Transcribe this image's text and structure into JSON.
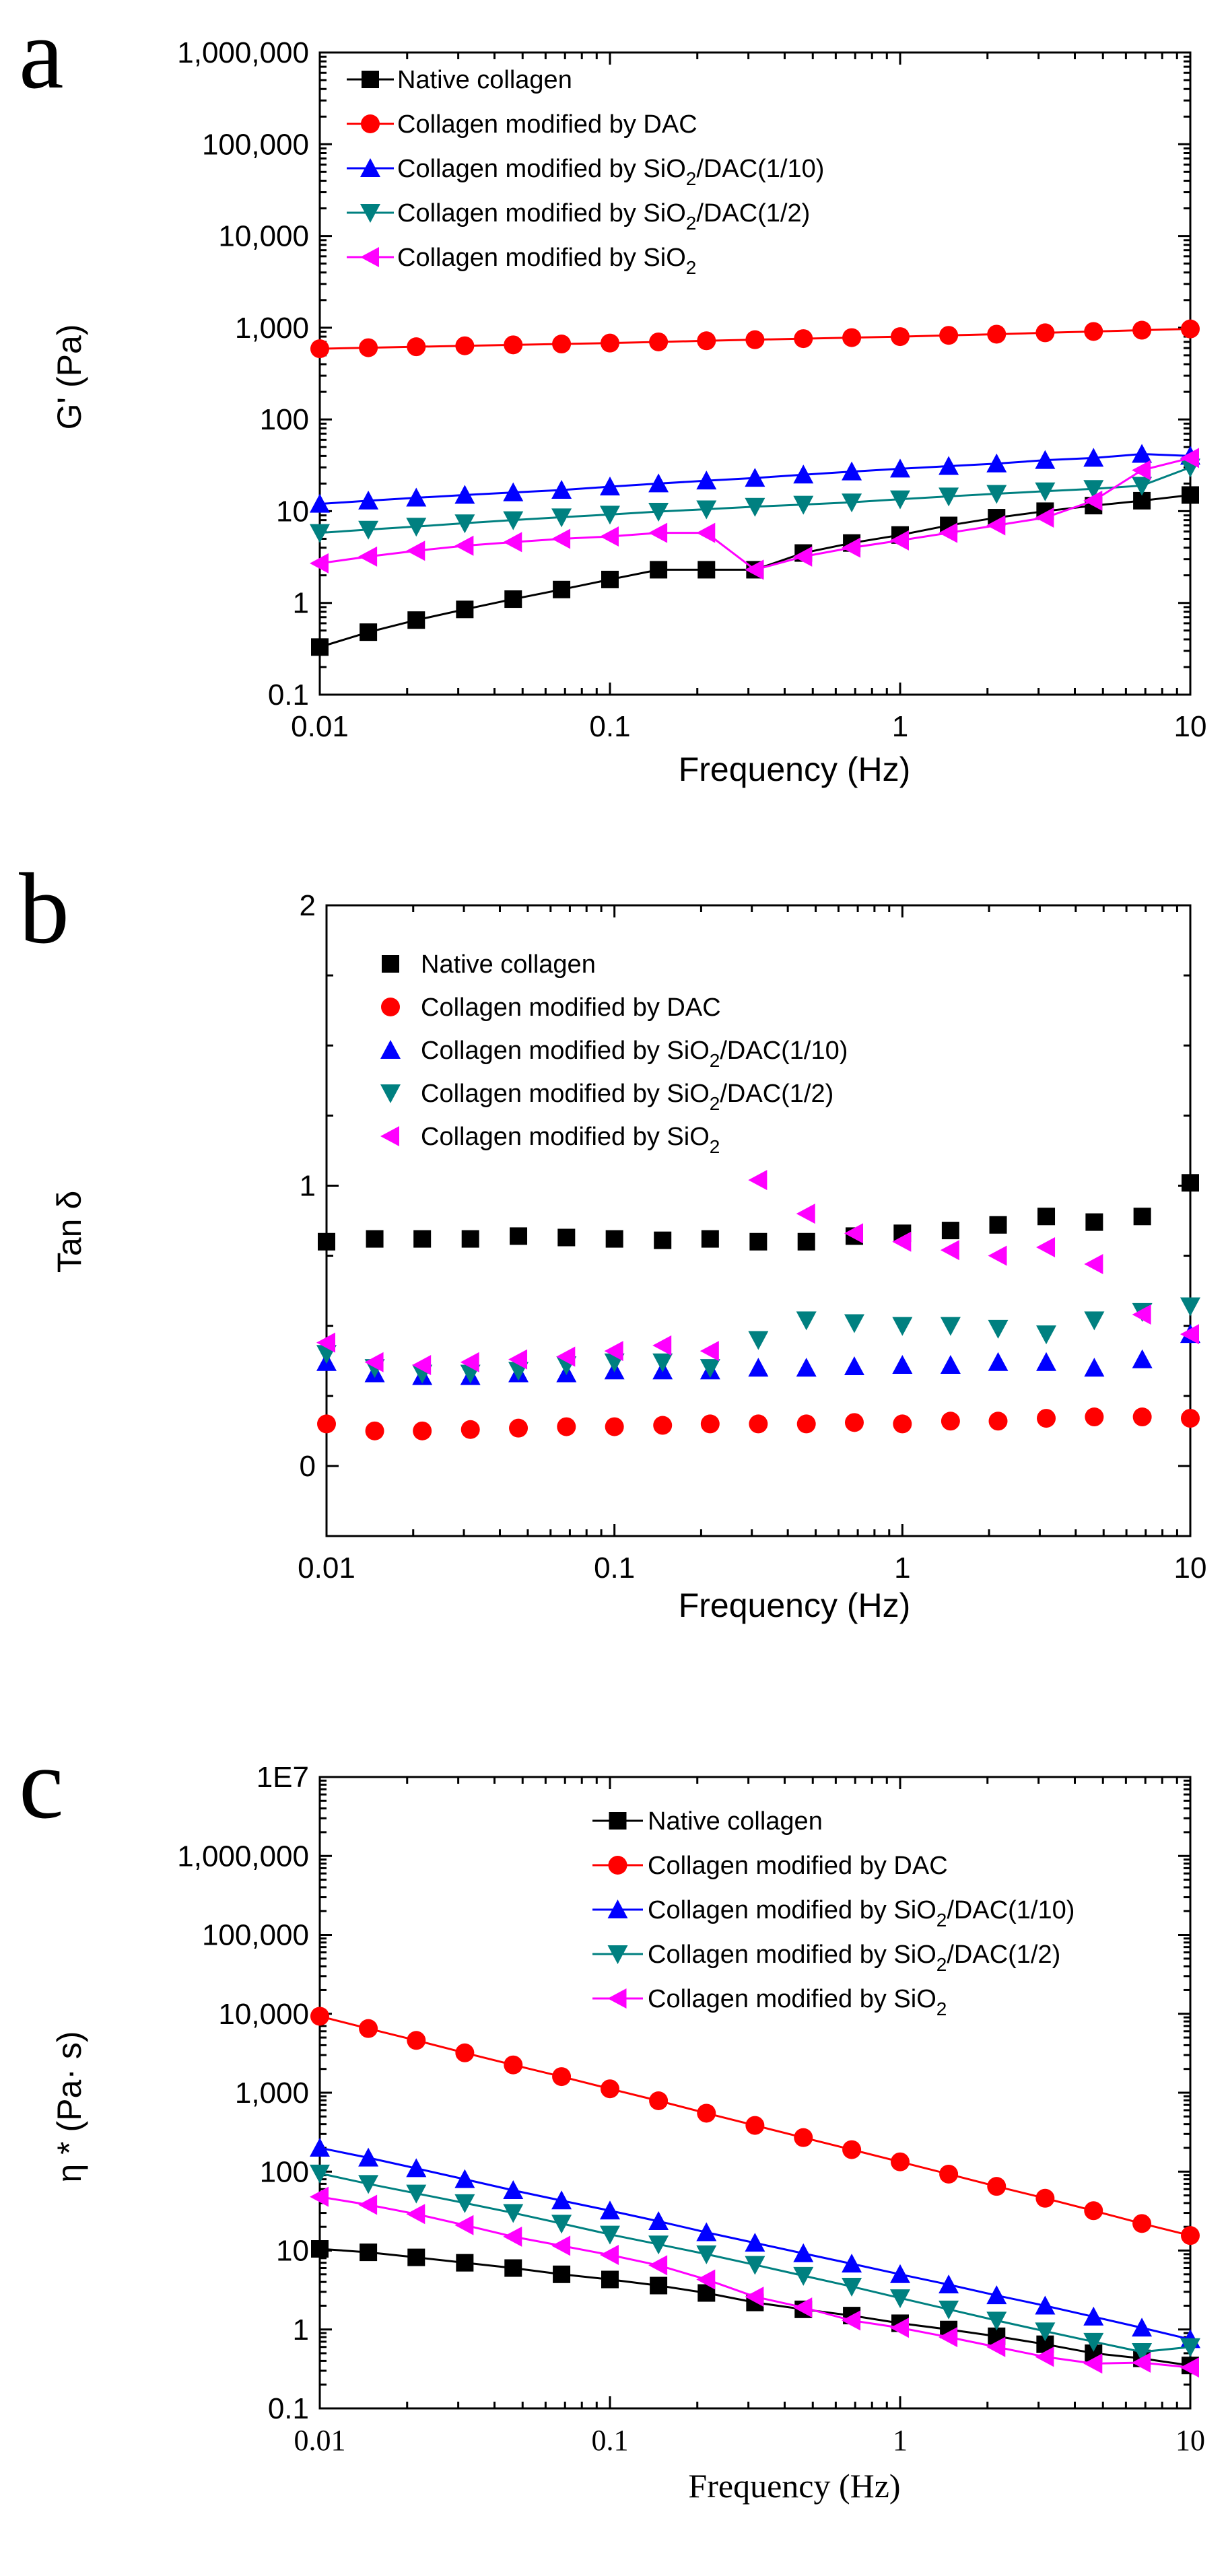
{
  "chart_data": [
    {
      "type": "line",
      "panel": "a",
      "xscale": "log",
      "yscale": "log",
      "xlabel": "Frequency (Hz)",
      "ylabel": "G' (Pa)",
      "xlim": [
        0.01,
        10
      ],
      "ylim": [
        0.1,
        1000000
      ],
      "xticks": [
        0.01,
        0.1,
        1,
        10
      ],
      "xtick_labels": [
        "0.01",
        "0.1",
        "1",
        "10"
      ],
      "yticks": [
        0.1,
        1,
        10,
        100,
        1000,
        10000,
        100000,
        1000000
      ],
      "ytick_labels": [
        "0.1",
        "1",
        "10",
        "100",
        "1,000",
        "10,000",
        "100,000",
        "1,000,000"
      ],
      "legend_position": "top-left",
      "x": [
        0.01,
        0.0147,
        0.0215,
        0.0316,
        0.0464,
        0.0681,
        0.1,
        0.147,
        0.215,
        0.316,
        0.464,
        0.681,
        1,
        1.47,
        2.15,
        3.16,
        4.64,
        6.81,
        10
      ],
      "series": [
        {
          "name": "Native collagen",
          "color": "#000000",
          "marker": "square",
          "line": true,
          "values": [
            0.33,
            0.48,
            0.65,
            0.85,
            1.1,
            1.4,
            1.8,
            2.3,
            2.3,
            2.3,
            3.5,
            4.5,
            5.5,
            7,
            8.5,
            10,
            11.5,
            13,
            15
          ]
        },
        {
          "name": "Collagen modified by DAC",
          "color": "#ff0000",
          "marker": "circle",
          "line": true,
          "values": [
            590,
            605,
            620,
            635,
            650,
            665,
            680,
            700,
            720,
            740,
            760,
            780,
            800,
            825,
            850,
            880,
            910,
            940,
            970
          ]
        },
        {
          "name": "Collagen modified by SiO2/DAC(1/10)",
          "color": "#0000ff",
          "marker": "triangle-up",
          "line": true,
          "values": [
            12,
            13,
            14,
            15,
            16,
            17,
            18.5,
            20,
            21.5,
            23,
            25,
            27,
            29,
            31,
            33,
            36,
            38,
            42,
            40
          ]
        },
        {
          "name": "Collagen modified by SiO2/DAC(1/2)",
          "color": "#008080",
          "marker": "triangle-down",
          "line": true,
          "values": [
            5.8,
            6.3,
            6.8,
            7.4,
            8.0,
            8.6,
            9.2,
            9.9,
            10.5,
            11.2,
            11.8,
            12.5,
            13.5,
            14.5,
            15.5,
            16.5,
            17.5,
            19,
            30
          ]
        },
        {
          "name": "Collagen modified by SiO2",
          "color": "#ff00ff",
          "marker": "triangle-left",
          "line": true,
          "values": [
            2.7,
            3.2,
            3.7,
            4.2,
            4.6,
            5.0,
            5.3,
            5.8,
            5.8,
            2.3,
            3.2,
            4.0,
            4.8,
            5.8,
            7.0,
            8.5,
            13,
            28,
            38
          ]
        }
      ],
      "legend": [
        {
          "base": "Native collagen",
          "sub": "",
          "tail": ""
        },
        {
          "base": "Collagen modified by DAC",
          "sub": "",
          "tail": ""
        },
        {
          "base": "Collagen modified by SiO",
          "sub": "2",
          "tail": "/DAC(1/10)"
        },
        {
          "base": "Collagen modified by SiO",
          "sub": "2",
          "tail": "/DAC(1/2)"
        },
        {
          "base": "Collagen modified by SiO",
          "sub": "2",
          "tail": ""
        }
      ]
    },
    {
      "type": "scatter",
      "panel": "b",
      "xscale": "log",
      "yscale": "linear",
      "xlabel": "Frequency (Hz)",
      "ylabel": "Tan δ",
      "xlim": [
        0.01,
        10
      ],
      "ylim": [
        -0.25,
        2
      ],
      "xticks": [
        0.01,
        0.1,
        1,
        10
      ],
      "xtick_labels": [
        "0.01",
        "0.1",
        "1",
        "10"
      ],
      "yticks": [
        0,
        1,
        2
      ],
      "ytick_labels": [
        "0",
        "1",
        "2"
      ],
      "legend_position": "top-left",
      "x": [
        0.01,
        0.0147,
        0.0215,
        0.0316,
        0.0464,
        0.0681,
        0.1,
        0.147,
        0.215,
        0.316,
        0.464,
        0.681,
        1,
        1.47,
        2.15,
        3.16,
        4.64,
        6.81,
        10
      ],
      "series": [
        {
          "name": "Native collagen",
          "color": "#000000",
          "marker": "square",
          "line": false,
          "values": [
            0.8,
            0.81,
            0.81,
            0.81,
            0.82,
            0.815,
            0.81,
            0.805,
            0.81,
            0.8,
            0.8,
            0.82,
            0.83,
            0.84,
            0.86,
            0.89,
            0.87,
            0.89,
            1.01
          ]
        },
        {
          "name": "Collagen modified by DAC",
          "color": "#ff0000",
          "marker": "circle",
          "line": false,
          "values": [
            0.15,
            0.125,
            0.125,
            0.13,
            0.135,
            0.14,
            0.14,
            0.145,
            0.15,
            0.15,
            0.15,
            0.155,
            0.15,
            0.16,
            0.16,
            0.17,
            0.175,
            0.175,
            0.17
          ]
        },
        {
          "name": "Collagen modified by SiO2/DAC(1/10)",
          "color": "#0000ff",
          "marker": "triangle-up",
          "line": false,
          "values": [
            0.37,
            0.33,
            0.32,
            0.32,
            0.33,
            0.33,
            0.34,
            0.34,
            0.34,
            0.35,
            0.35,
            0.355,
            0.36,
            0.36,
            0.37,
            0.37,
            0.35,
            0.38,
            0.47
          ]
        },
        {
          "name": "Collagen modified by SiO2/DAC(1/2)",
          "color": "#008080",
          "marker": "triangle-down",
          "line": false,
          "values": [
            0.4,
            0.35,
            0.33,
            0.33,
            0.34,
            0.36,
            0.37,
            0.37,
            0.35,
            0.45,
            0.52,
            0.51,
            0.5,
            0.5,
            0.49,
            0.47,
            0.52,
            0.55,
            0.57
          ]
        },
        {
          "name": "Collagen modified by SiO2",
          "color": "#ff00ff",
          "marker": "triangle-left",
          "line": false,
          "values": [
            0.44,
            0.37,
            0.36,
            0.37,
            0.38,
            0.39,
            0.41,
            0.43,
            0.41,
            1.02,
            0.9,
            0.83,
            0.8,
            0.77,
            0.75,
            0.78,
            0.72,
            0.54,
            0.47
          ]
        }
      ],
      "legend": [
        {
          "base": "Native collagen",
          "sub": "",
          "tail": ""
        },
        {
          "base": "Collagen modified by DAC",
          "sub": "",
          "tail": ""
        },
        {
          "base": "Collagen modified by SiO",
          "sub": "2",
          "tail": "/DAC(1/10)"
        },
        {
          "base": "Collagen modified by SiO",
          "sub": "2",
          "tail": "/DAC(1/2)"
        },
        {
          "base": "Collagen modified by SiO",
          "sub": "2",
          "tail": ""
        }
      ]
    },
    {
      "type": "line",
      "panel": "c",
      "xscale": "log",
      "yscale": "log",
      "xlabel": "Frequency (Hz)",
      "ylabel": "η * (Pa· s)",
      "xlim": [
        0.01,
        10
      ],
      "ylim": [
        0.1,
        10000000
      ],
      "xticks": [
        0.01,
        0.1,
        1,
        10
      ],
      "xtick_labels": [
        "0.01",
        "0.1",
        "1",
        "10"
      ],
      "yticks": [
        0.1,
        1,
        10,
        100,
        1000,
        10000,
        100000,
        1000000,
        10000000
      ],
      "ytick_labels": [
        "0.1",
        "1",
        "10",
        "100",
        "1,000",
        "10,000",
        "100,000",
        "1,000,000",
        "1E7"
      ],
      "legend_position": "top-right",
      "x": [
        0.01,
        0.0147,
        0.0215,
        0.0316,
        0.0464,
        0.0681,
        0.1,
        0.147,
        0.215,
        0.316,
        0.464,
        0.681,
        1,
        1.47,
        2.15,
        3.16,
        4.64,
        6.81,
        10
      ],
      "series": [
        {
          "name": "Native collagen",
          "color": "#000000",
          "marker": "square",
          "line": true,
          "values": [
            10.5,
            9.5,
            8.2,
            7.0,
            6.0,
            5.0,
            4.3,
            3.6,
            2.9,
            2.2,
            1.8,
            1.5,
            1.2,
            1.0,
            0.82,
            0.65,
            0.5,
            0.43,
            0.35
          ]
        },
        {
          "name": "Collagen modified by DAC",
          "color": "#ff0000",
          "marker": "circle",
          "line": true,
          "values": [
            9300,
            6500,
            4600,
            3200,
            2250,
            1600,
            1120,
            790,
            550,
            385,
            270,
            190,
            133,
            93,
            65,
            46,
            32,
            22,
            15.5
          ]
        },
        {
          "name": "Collagen modified by SiO2/DAC(1/10)",
          "color": "#0000ff",
          "marker": "triangle-up",
          "line": true,
          "values": [
            200,
            150,
            110,
            80,
            58,
            43,
            32,
            23.5,
            17,
            12.5,
            9.2,
            6.8,
            5.0,
            3.7,
            2.7,
            2.0,
            1.45,
            1.05,
            0.75
          ]
        },
        {
          "name": "Collagen modified by SiO2/DAC(1/2)",
          "color": "#008080",
          "marker": "triangle-down",
          "line": true,
          "values": [
            95,
            70,
            53,
            40,
            30,
            22,
            16,
            12,
            9.0,
            6.6,
            4.8,
            3.5,
            2.5,
            1.8,
            1.3,
            0.95,
            0.7,
            0.52,
            0.6
          ]
        },
        {
          "name": "Collagen modified by SiO2",
          "color": "#ff00ff",
          "marker": "triangle-left",
          "line": true,
          "values": [
            48,
            38,
            29,
            21,
            15,
            11.5,
            8.8,
            6.5,
            4.3,
            2.6,
            1.9,
            1.3,
            1.05,
            0.8,
            0.6,
            0.45,
            0.37,
            0.38,
            0.33
          ]
        }
      ],
      "legend": [
        {
          "base": "Native collagen",
          "sub": "",
          "tail": ""
        },
        {
          "base": "Collagen modified by DAC",
          "sub": "",
          "tail": ""
        },
        {
          "base": "Collagen modified by SiO",
          "sub": "2",
          "tail": "/DAC(1/10)"
        },
        {
          "base": "Collagen modified by SiO",
          "sub": "2",
          "tail": "/DAC(1/2)"
        },
        {
          "base": "Collagen modified by SiO",
          "sub": "2",
          "tail": ""
        }
      ]
    }
  ]
}
